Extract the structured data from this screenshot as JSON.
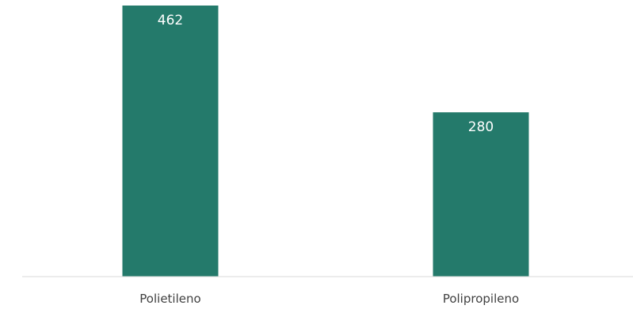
{
  "chart_data": {
    "type": "bar",
    "categories": [
      "Polietileno",
      "Polipropileno"
    ],
    "values": [
      462,
      280
    ],
    "title": "",
    "xlabel": "",
    "ylabel": "",
    "ylim": [
      0,
      462
    ],
    "grid": false,
    "legend": "none",
    "data_labels": [
      "462",
      "280"
    ],
    "colors": {
      "bar": "#247A6B",
      "axis": "#D9D9D9",
      "category_text": "#404040",
      "data_label_text": "#FFFFFF"
    }
  }
}
